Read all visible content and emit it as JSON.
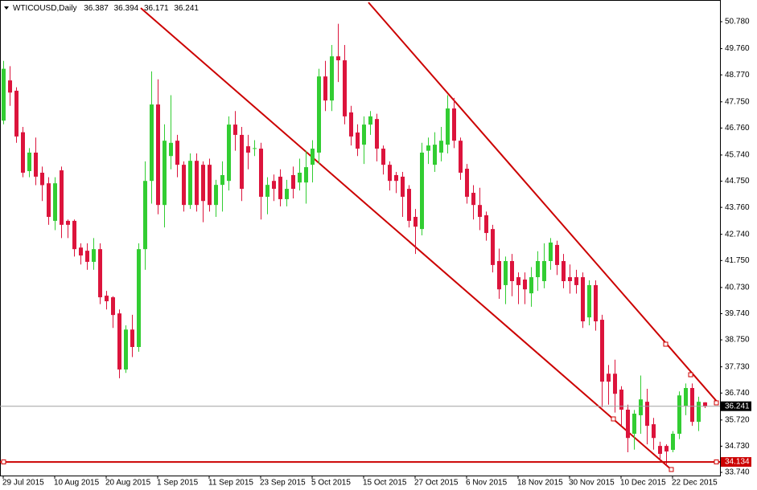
{
  "chart_data": {
    "type": "candlestick",
    "title": "WTICOUSD,Daily",
    "up_color": "#32cd32",
    "down_color": "#dc143c",
    "level": 34.134,
    "ylim": [
      33.62,
      51.6
    ],
    "yticks": [
      {
        "value": 50.78,
        "label": "50.780"
      },
      {
        "value": 49.76,
        "label": "49.760"
      },
      {
        "value": 48.77,
        "label": "48.770"
      },
      {
        "value": 47.75,
        "label": "47.750"
      },
      {
        "value": 46.76,
        "label": "46.760"
      },
      {
        "value": 45.74,
        "label": "45.740"
      },
      {
        "value": 44.75,
        "label": "44.750"
      },
      {
        "value": 43.76,
        "label": "43.760"
      },
      {
        "value": 42.74,
        "label": "42.740"
      },
      {
        "value": 41.75,
        "label": "41.750"
      },
      {
        "value": 40.73,
        "label": "40.730"
      },
      {
        "value": 39.74,
        "label": "39.740"
      },
      {
        "value": 38.75,
        "label": "38.750"
      },
      {
        "value": 37.73,
        "label": "37.730"
      },
      {
        "value": 36.74,
        "label": "36.740"
      },
      {
        "value": 35.72,
        "label": "35.720"
      },
      {
        "value": 34.73,
        "label": "34.730"
      },
      {
        "value": 33.74,
        "label": "33.740"
      }
    ],
    "categories": [
      "29 Jul 2015",
      null,
      null,
      null,
      null,
      null,
      null,
      null,
      "10 Aug 2015",
      null,
      null,
      null,
      null,
      null,
      null,
      null,
      "20 Aug 2015",
      null,
      null,
      null,
      null,
      null,
      null,
      null,
      "1 Sep 2015",
      null,
      null,
      null,
      null,
      null,
      null,
      null,
      "11 Sep 2015",
      null,
      null,
      null,
      null,
      null,
      null,
      null,
      "23 Sep 2015",
      null,
      null,
      null,
      null,
      null,
      null,
      null,
      "5 Oct 2015",
      null,
      null,
      null,
      null,
      null,
      null,
      null,
      "15 Oct 2015",
      null,
      null,
      null,
      null,
      null,
      null,
      null,
      "27 Oct 2015",
      null,
      null,
      null,
      null,
      null,
      null,
      null,
      "6 Nov 2015",
      null,
      null,
      null,
      null,
      null,
      null,
      null,
      "18 Nov 2015",
      null,
      null,
      null,
      null,
      null,
      null,
      null,
      "30 Nov 2015",
      null,
      null,
      null,
      null,
      null,
      null,
      null,
      "10 Dec 2015",
      null,
      null,
      null,
      null,
      null,
      null,
      null,
      "22 Dec 2015",
      null,
      null,
      null,
      null,
      null
    ],
    "candles": [
      [
        47.04,
        49.3,
        46.9,
        49.0
      ],
      [
        48.56,
        49.1,
        47.6,
        48.1
      ],
      [
        48.17,
        48.3,
        46.2,
        46.44
      ],
      [
        46.6,
        46.8,
        44.9,
        45.07
      ],
      [
        45.13,
        46.0,
        44.9,
        45.83
      ],
      [
        45.83,
        46.4,
        44.6,
        44.92
      ],
      [
        45.07,
        45.3,
        44.0,
        44.6
      ],
      [
        44.67,
        44.9,
        43.1,
        43.4
      ],
      [
        43.25,
        44.9,
        42.9,
        44.67
      ],
      [
        45.16,
        45.3,
        42.6,
        43.1
      ],
      [
        43.25,
        43.3,
        42.6,
        43.1
      ],
      [
        43.25,
        43.3,
        41.9,
        42.18
      ],
      [
        42.24,
        42.4,
        41.6,
        41.94
      ],
      [
        42.12,
        42.4,
        41.4,
        41.7
      ],
      [
        41.7,
        42.6,
        41.4,
        42.18
      ],
      [
        42.18,
        42.4,
        40.1,
        40.36
      ],
      [
        40.42,
        40.6,
        39.9,
        40.21
      ],
      [
        40.36,
        40.4,
        39.2,
        39.69
      ],
      [
        39.75,
        39.9,
        37.3,
        37.63
      ],
      [
        37.63,
        39.3,
        37.5,
        39.14
      ],
      [
        39.14,
        39.7,
        38.1,
        38.48
      ],
      [
        38.48,
        42.4,
        38.3,
        42.18
      ],
      [
        42.18,
        45.5,
        41.4,
        44.76
      ],
      [
        44.76,
        48.9,
        43.9,
        47.65
      ],
      [
        47.65,
        48.6,
        43.5,
        43.85
      ],
      [
        43.85,
        46.9,
        43.0,
        46.28
      ],
      [
        45.7,
        48.0,
        45.2,
        46.2
      ],
      [
        46.28,
        46.5,
        44.9,
        45.37
      ],
      [
        45.37,
        45.5,
        43.6,
        43.85
      ],
      [
        43.85,
        45.8,
        43.7,
        45.52
      ],
      [
        45.52,
        45.8,
        43.6,
        43.85
      ],
      [
        45.37,
        45.5,
        43.2,
        44.0
      ],
      [
        45.37,
        45.6,
        43.6,
        43.85
      ],
      [
        43.85,
        44.8,
        43.4,
        44.61
      ],
      [
        44.61,
        45.5,
        43.6,
        44.98
      ],
      [
        44.76,
        47.2,
        44.4,
        46.89
      ],
      [
        46.89,
        47.4,
        45.9,
        46.5
      ],
      [
        46.5,
        46.8,
        44.0,
        44.46
      ],
      [
        46.07,
        46.5,
        45.2,
        45.83
      ],
      [
        45.98,
        46.3,
        45.7,
        46.0
      ],
      [
        45.98,
        46.2,
        43.3,
        44.16
      ],
      [
        44.16,
        44.9,
        43.5,
        44.61
      ],
      [
        44.76,
        45.0,
        44.0,
        44.46
      ],
      [
        44.92,
        45.2,
        43.8,
        44.07
      ],
      [
        44.07,
        44.8,
        43.8,
        44.46
      ],
      [
        44.98,
        45.3,
        44.1,
        44.46
      ],
      [
        44.7,
        45.6,
        44.4,
        45.07
      ],
      [
        44.7,
        45.9,
        43.9,
        45.28
      ],
      [
        45.37,
        46.3,
        44.7,
        45.98
      ],
      [
        45.83,
        49.0,
        45.4,
        48.71
      ],
      [
        48.71,
        49.3,
        47.4,
        47.8
      ],
      [
        47.8,
        49.9,
        47.4,
        49.47
      ],
      [
        49.47,
        50.7,
        48.5,
        49.32
      ],
      [
        49.32,
        49.9,
        46.9,
        47.2
      ],
      [
        47.35,
        47.6,
        46.1,
        46.44
      ],
      [
        46.59,
        46.9,
        45.7,
        45.98
      ],
      [
        46.13,
        47.2,
        45.4,
        46.89
      ],
      [
        46.89,
        47.4,
        46.5,
        47.2
      ],
      [
        47.1,
        47.3,
        45.5,
        45.98
      ],
      [
        45.98,
        46.1,
        45.0,
        45.37
      ],
      [
        45.37,
        45.5,
        44.4,
        44.76
      ],
      [
        44.98,
        45.1,
        44.3,
        44.76
      ],
      [
        44.92,
        45.1,
        43.4,
        44.16
      ],
      [
        44.46,
        44.6,
        43.0,
        43.25
      ],
      [
        43.4,
        43.7,
        42.0,
        43.03
      ],
      [
        42.94,
        46.2,
        42.7,
        45.83
      ],
      [
        45.9,
        46.4,
        45.4,
        46.1
      ],
      [
        45.37,
        46.6,
        45.1,
        46.13
      ],
      [
        45.83,
        46.8,
        45.5,
        46.28
      ],
      [
        46.13,
        48.0,
        45.8,
        47.5
      ],
      [
        47.5,
        47.9,
        46.0,
        46.28
      ],
      [
        46.28,
        46.4,
        44.8,
        45.07
      ],
      [
        45.22,
        45.4,
        43.9,
        44.16
      ],
      [
        44.31,
        44.6,
        43.3,
        43.85
      ],
      [
        43.85,
        44.5,
        42.9,
        43.4
      ],
      [
        43.46,
        43.6,
        42.5,
        42.79
      ],
      [
        42.94,
        43.1,
        41.3,
        41.58
      ],
      [
        41.73,
        42.2,
        40.3,
        40.66
      ],
      [
        40.82,
        41.9,
        40.1,
        41.73
      ],
      [
        41.73,
        42.0,
        40.4,
        40.97
      ],
      [
        41.12,
        41.3,
        40.1,
        40.82
      ],
      [
        41.03,
        41.3,
        40.1,
        40.66
      ],
      [
        40.51,
        41.5,
        40.0,
        41.12
      ],
      [
        41.12,
        42.1,
        40.6,
        41.73
      ],
      [
        40.97,
        42.4,
        40.7,
        41.73
      ],
      [
        41.73,
        42.6,
        41.4,
        42.43
      ],
      [
        42.34,
        42.5,
        41.2,
        41.58
      ],
      [
        41.73,
        42.0,
        40.7,
        40.97
      ],
      [
        41.12,
        41.6,
        40.5,
        40.97
      ],
      [
        41.12,
        41.4,
        40.5,
        40.82
      ],
      [
        41.12,
        41.3,
        39.2,
        39.45
      ],
      [
        39.6,
        41.0,
        39.3,
        40.82
      ],
      [
        40.82,
        41.0,
        39.1,
        39.45
      ],
      [
        39.51,
        39.7,
        36.2,
        37.17
      ],
      [
        37.47,
        37.8,
        36.3,
        37.17
      ],
      [
        37.47,
        38.0,
        36.0,
        36.71
      ],
      [
        36.87,
        37.0,
        35.5,
        36.11
      ],
      [
        36.11,
        36.3,
        34.5,
        35.04
      ],
      [
        35.2,
        36.1,
        34.6,
        35.96
      ],
      [
        35.9,
        37.4,
        35.2,
        36.5
      ],
      [
        36.41,
        36.9,
        34.8,
        35.5
      ],
      [
        35.56,
        35.8,
        34.6,
        35.04
      ],
      [
        34.74,
        34.9,
        34.2,
        34.44
      ],
      [
        34.74,
        34.8,
        34.0,
        34.53
      ],
      [
        34.59,
        35.3,
        34.5,
        35.2
      ],
      [
        35.2,
        36.8,
        35.0,
        36.65
      ],
      [
        36.26,
        37.1,
        35.9,
        36.93
      ],
      [
        36.93,
        37.1,
        35.5,
        35.65
      ],
      [
        35.65,
        36.6,
        35.3,
        36.41
      ],
      [
        36.387,
        36.394,
        36.171,
        36.241
      ]
    ]
  }
}
